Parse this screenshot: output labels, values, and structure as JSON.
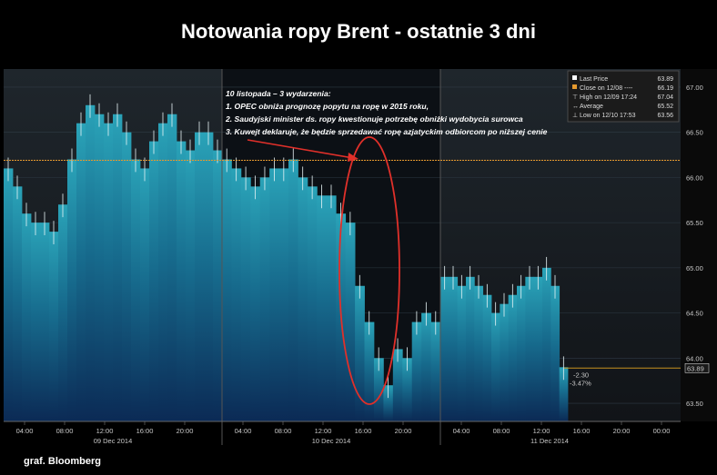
{
  "title": "Notowania ropy Brent - ostatnie 3 dni",
  "credit": "graf. Bloomberg",
  "chart_data": {
    "type": "bar",
    "ylim": [
      63.3,
      67.2
    ],
    "y_ticks": [
      "67.00",
      "66.50",
      "66.00",
      "65.50",
      "65.00",
      "64.50",
      "64.00",
      "63.50"
    ],
    "x_time_labels": [
      "04:00",
      "08:00",
      "12:00",
      "16:00",
      "20:00",
      "04:00",
      "08:00",
      "12:00",
      "16:00",
      "20:00",
      "04:00",
      "08:00",
      "12:00",
      "16:00",
      "20:00",
      "00:00"
    ],
    "date_labels": [
      "09 Dec 2014",
      "10 Dec 2014",
      "11 Dec 2014"
    ],
    "close_on_1208": 66.19,
    "last_price": 63.89,
    "change_abs": "-2.30",
    "change_pct": "-3.47%",
    "series": [
      {
        "day": "09 Dec 2014",
        "x": [
          1,
          2,
          3,
          4,
          5,
          6,
          7,
          8,
          9,
          10,
          11,
          12,
          13,
          14,
          15,
          16,
          17,
          18,
          19,
          20,
          21,
          22,
          23,
          24
        ],
        "values": [
          66.1,
          65.9,
          65.6,
          65.5,
          65.5,
          65.4,
          65.7,
          66.2,
          66.6,
          66.8,
          66.7,
          66.6,
          66.7,
          66.5,
          66.2,
          66.1,
          66.4,
          66.6,
          66.7,
          66.4,
          66.3,
          66.5,
          66.5,
          66.3
        ]
      },
      {
        "day": "10 Dec 2014",
        "x": [
          1,
          2,
          3,
          4,
          5,
          6,
          7,
          8,
          9,
          10,
          11,
          12,
          13,
          14,
          15,
          16,
          17,
          18,
          19,
          20,
          21,
          22,
          23
        ],
        "values": [
          66.2,
          66.1,
          66.0,
          65.9,
          66.0,
          66.1,
          66.1,
          66.2,
          66.0,
          65.9,
          65.8,
          65.8,
          65.6,
          65.5,
          64.8,
          64.4,
          64.0,
          63.7,
          64.1,
          64.0,
          64.4,
          64.5,
          64.4
        ]
      },
      {
        "day": "11 Dec 2014",
        "x": [
          1,
          2,
          3,
          4,
          5,
          6,
          7,
          8,
          9,
          10,
          11,
          12,
          13,
          14,
          15
        ],
        "values": [
          64.9,
          64.9,
          64.8,
          64.9,
          64.8,
          64.7,
          64.5,
          64.6,
          64.7,
          64.8,
          64.9,
          64.9,
          65.0,
          64.8,
          63.9
        ]
      }
    ],
    "legend": {
      "placement": "top-right",
      "items": [
        {
          "label": "Last Price",
          "value": "63.89",
          "color": "#ffffff"
        },
        {
          "label": "Close on 12/08 ----",
          "value": "66.19",
          "color": "#e69a2e"
        },
        {
          "label": "High on 12/09 17:24",
          "value": "67.04",
          "color": "#ffffff"
        },
        {
          "label": "Average",
          "value": "65.52",
          "color": "#ffffff"
        },
        {
          "label": "Low on 12/10 17:53",
          "value": "63.56",
          "color": "#ffffff"
        }
      ]
    },
    "annotation": {
      "heading": "10 listopada – 3 wydarzenia:",
      "lines": [
        "1. OPEC obniża prognozę popytu na ropę w 2015 roku,",
        "2. Saudyjski minister ds. ropy kwestionuje potrzebę obniżki wydobycia surowca",
        "3. Kuwejt deklaruje, że będzie sprzedawać ropę azjatyckim odbiorcom po niższej cenie"
      ]
    },
    "colors": {
      "bar_top": "#2aa3b8",
      "bar_bottom": "#0c2850",
      "close_line": "#e69a2e",
      "last_line": "#c8901e",
      "ellipse": "#e0302a"
    }
  }
}
